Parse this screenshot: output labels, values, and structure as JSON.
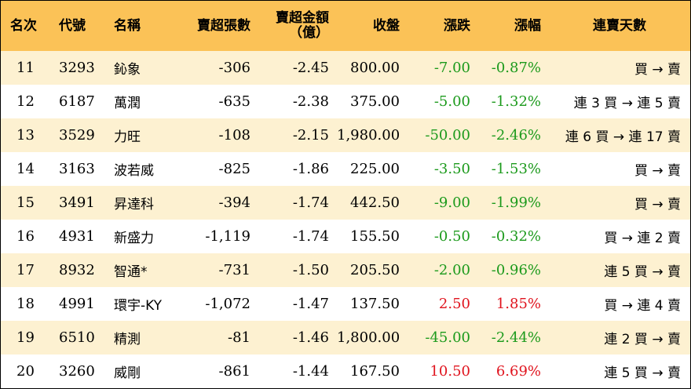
{
  "table": {
    "headers": {
      "rank": "名次",
      "code": "代號",
      "name": "名稱",
      "net_sell_lots": "賣超張數",
      "net_sell_amount_line1": "賣超金額",
      "net_sell_amount_line2": "（億）",
      "close": "收盤",
      "change": "漲跌",
      "change_pct": "漲幅",
      "streak": "連賣天數"
    },
    "rows": [
      {
        "rank": "11",
        "code": "3293",
        "name": "鈊象",
        "lots": "-306",
        "amount": "-2.45",
        "close": "800.00",
        "change": "-7.00",
        "pct": "-0.87%",
        "streak": "買 → 賣",
        "dir": "neg"
      },
      {
        "rank": "12",
        "code": "6187",
        "name": "萬潤",
        "lots": "-635",
        "amount": "-2.38",
        "close": "375.00",
        "change": "-5.00",
        "pct": "-1.32%",
        "streak": "連 3 買 → 連 5 賣",
        "dir": "neg"
      },
      {
        "rank": "13",
        "code": "3529",
        "name": "力旺",
        "lots": "-108",
        "amount": "-2.15",
        "close": "1,980.00",
        "change": "-50.00",
        "pct": "-2.46%",
        "streak": "連 6 買 → 連 17 賣",
        "dir": "neg"
      },
      {
        "rank": "14",
        "code": "3163",
        "name": "波若威",
        "lots": "-825",
        "amount": "-1.86",
        "close": "225.00",
        "change": "-3.50",
        "pct": "-1.53%",
        "streak": "買 → 賣",
        "dir": "neg"
      },
      {
        "rank": "15",
        "code": "3491",
        "name": "昇達科",
        "lots": "-394",
        "amount": "-1.74",
        "close": "442.50",
        "change": "-9.00",
        "pct": "-1.99%",
        "streak": "買 → 賣",
        "dir": "neg"
      },
      {
        "rank": "16",
        "code": "4931",
        "name": "新盛力",
        "lots": "-1,119",
        "amount": "-1.74",
        "close": "155.50",
        "change": "-0.50",
        "pct": "-0.32%",
        "streak": "買 → 連 2 賣",
        "dir": "neg"
      },
      {
        "rank": "17",
        "code": "8932",
        "name": "智通*",
        "lots": "-731",
        "amount": "-1.50",
        "close": "205.50",
        "change": "-2.00",
        "pct": "-0.96%",
        "streak": "連 5 買 → 賣",
        "dir": "neg"
      },
      {
        "rank": "18",
        "code": "4991",
        "name": "環宇-KY",
        "lots": "-1,072",
        "amount": "-1.47",
        "close": "137.50",
        "change": "2.50",
        "pct": "1.85%",
        "streak": "買 → 連 4 賣",
        "dir": "pos"
      },
      {
        "rank": "19",
        "code": "6510",
        "name": "精測",
        "lots": "-81",
        "amount": "-1.46",
        "close": "1,800.00",
        "change": "-45.00",
        "pct": "-2.44%",
        "streak": "連 2 買 → 賣",
        "dir": "neg"
      },
      {
        "rank": "20",
        "code": "3260",
        "name": "威剛",
        "lots": "-861",
        "amount": "-1.44",
        "close": "167.50",
        "change": "10.50",
        "pct": "6.69%",
        "streak": "連 5 買 → 賣",
        "dir": "pos"
      }
    ]
  },
  "colors": {
    "header_bg": "#fbc257",
    "odd_row_bg": "#fdf1d1",
    "even_row_bg": "#ffffff",
    "negative": "#1c9a1c",
    "positive": "#e0141e"
  }
}
